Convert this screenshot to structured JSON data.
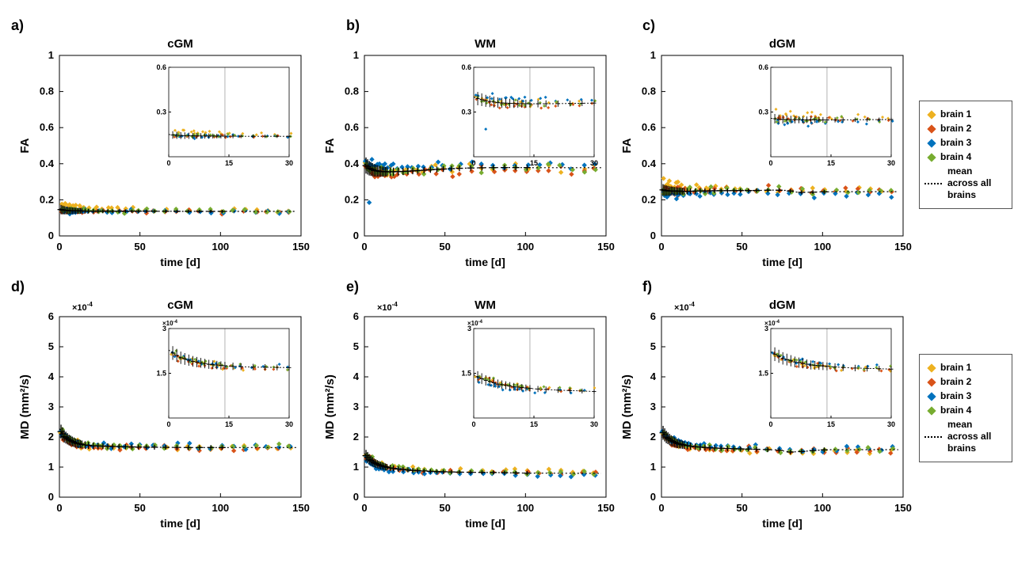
{
  "page": {
    "background": "#ffffff"
  },
  "sample_times": [
    1,
    2,
    3,
    4,
    5,
    6,
    7,
    8,
    9,
    10,
    11,
    12,
    13,
    14,
    16,
    18,
    21,
    24,
    27,
    30,
    33,
    37,
    41,
    45,
    49,
    54,
    59,
    66,
    73,
    80,
    87,
    94,
    101,
    108,
    115,
    122,
    129,
    136,
    143
  ],
  "legend": {
    "entries": [
      {
        "label": "brain 1",
        "marker": "diamond",
        "color": "#EDB120"
      },
      {
        "label": "brain 2",
        "marker": "diamond",
        "color": "#D95319"
      },
      {
        "label": "brain 3",
        "marker": "diamond",
        "color": "#0072BD"
      },
      {
        "label": "brain 4",
        "marker": "diamond",
        "color": "#77AC30"
      },
      {
        "label": "mean across all brains",
        "marker": "dotted-line",
        "color": "#000000"
      }
    ]
  },
  "chart_data": [
    {
      "id": "a",
      "panel_label": "a)",
      "type": "scatter",
      "title": "cGM",
      "xlabel": "time [d]",
      "ylabel": "FA",
      "xlim": [
        0,
        150
      ],
      "ylim": [
        0,
        1
      ],
      "xticks": [
        0,
        50,
        100,
        150
      ],
      "yticks": [
        0,
        0.2,
        0.4,
        0.6,
        0.8,
        1
      ],
      "y_exp": null,
      "mean_curve": [
        [
          0,
          0.15
        ],
        [
          1,
          0.146
        ],
        [
          3,
          0.142
        ],
        [
          6,
          0.14
        ],
        [
          10,
          0.139
        ],
        [
          15,
          0.138
        ],
        [
          20,
          0.137
        ],
        [
          30,
          0.137
        ],
        [
          50,
          0.137
        ],
        [
          80,
          0.136
        ],
        [
          110,
          0.136
        ],
        [
          148,
          0.136
        ]
      ],
      "noise_sd": 0.006,
      "errorbar_base": 0.02,
      "errorbar_tmax": 101,
      "series": [
        {
          "name": "brain 1",
          "color": "#EDB120",
          "offset_early": 0.028,
          "offset_late": 0.004
        },
        {
          "name": "brain 2",
          "color": "#D95319",
          "offset_early": -0.004,
          "offset_late": -0.001
        },
        {
          "name": "brain 3",
          "color": "#0072BD",
          "offset_early": -0.004,
          "offset_late": 0.0
        },
        {
          "name": "brain 4",
          "color": "#77AC30",
          "offset_early": 0.002,
          "offset_late": 0.001
        }
      ],
      "extra_points": [],
      "inset": {
        "xlim": [
          0,
          30
        ],
        "ylim": [
          0,
          0.6
        ],
        "xticks": [
          0,
          15,
          30
        ],
        "yticks": [
          0.3,
          0.6
        ],
        "vline": 14,
        "y_exp": null
      }
    },
    {
      "id": "b",
      "panel_label": "b)",
      "type": "scatter",
      "title": "WM",
      "xlabel": "time [d]",
      "ylabel": "FA",
      "xlim": [
        0,
        150
      ],
      "ylim": [
        0,
        1
      ],
      "xticks": [
        0,
        50,
        100,
        150
      ],
      "yticks": [
        0,
        0.2,
        0.4,
        0.6,
        0.8,
        1
      ],
      "y_exp": null,
      "mean_curve": [
        [
          0,
          0.4
        ],
        [
          1,
          0.39
        ],
        [
          3,
          0.375
        ],
        [
          6,
          0.363
        ],
        [
          10,
          0.357
        ],
        [
          15,
          0.355
        ],
        [
          20,
          0.356
        ],
        [
          30,
          0.36
        ],
        [
          40,
          0.366
        ],
        [
          50,
          0.371
        ],
        [
          60,
          0.375
        ],
        [
          75,
          0.378
        ],
        [
          90,
          0.379
        ],
        [
          110,
          0.378
        ],
        [
          148,
          0.378
        ]
      ],
      "noise_sd": 0.013,
      "errorbar_base": 0.035,
      "errorbar_tmax": 101,
      "series": [
        {
          "name": "brain 1",
          "color": "#EDB120",
          "offset_early": 0.01,
          "offset_late": 0.002
        },
        {
          "name": "brain 2",
          "color": "#D95319",
          "offset_early": -0.012,
          "offset_late": -0.012
        },
        {
          "name": "brain 3",
          "color": "#0072BD",
          "offset_early": 0.035,
          "offset_late": 0.016
        },
        {
          "name": "brain 4",
          "color": "#77AC30",
          "offset_early": -0.004,
          "offset_late": 0.0
        }
      ],
      "extra_points": [
        {
          "series": 2,
          "x": 3,
          "y": 0.185
        }
      ],
      "inset": {
        "xlim": [
          0,
          30
        ],
        "ylim": [
          0,
          0.6
        ],
        "xticks": [
          0,
          15,
          30
        ],
        "yticks": [
          0.3,
          0.6
        ],
        "vline": 14,
        "y_exp": null
      }
    },
    {
      "id": "c",
      "panel_label": "c)",
      "type": "scatter",
      "title": "dGM",
      "xlabel": "time [d]",
      "ylabel": "FA",
      "xlim": [
        0,
        150
      ],
      "ylim": [
        0,
        1
      ],
      "xticks": [
        0,
        50,
        100,
        150
      ],
      "yticks": [
        0,
        0.2,
        0.4,
        0.6,
        0.8,
        1
      ],
      "y_exp": null,
      "mean_curve": [
        [
          0,
          0.258
        ],
        [
          2,
          0.252
        ],
        [
          5,
          0.249
        ],
        [
          10,
          0.248
        ],
        [
          15,
          0.247
        ],
        [
          20,
          0.248
        ],
        [
          30,
          0.25
        ],
        [
          45,
          0.251
        ],
        [
          60,
          0.252
        ],
        [
          70,
          0.254
        ],
        [
          78,
          0.252
        ],
        [
          85,
          0.241
        ],
        [
          92,
          0.242
        ],
        [
          100,
          0.244
        ],
        [
          110,
          0.245
        ],
        [
          148,
          0.245
        ]
      ],
      "noise_sd": 0.011,
      "errorbar_base": 0.025,
      "errorbar_tmax": 101,
      "series": [
        {
          "name": "brain 1",
          "color": "#EDB120",
          "offset_early": 0.034,
          "offset_late": 0.006
        },
        {
          "name": "brain 2",
          "color": "#D95319",
          "offset_early": 0.002,
          "offset_late": 0.004
        },
        {
          "name": "brain 3",
          "color": "#0072BD",
          "offset_early": -0.02,
          "offset_late": -0.014
        },
        {
          "name": "brain 4",
          "color": "#77AC30",
          "offset_early": 0.002,
          "offset_late": 0.0
        }
      ],
      "extra_points": [],
      "inset": {
        "xlim": [
          0,
          30
        ],
        "ylim": [
          0,
          0.6
        ],
        "xticks": [
          0,
          15,
          30
        ],
        "yticks": [
          0.3,
          0.6
        ],
        "vline": 14,
        "y_exp": null
      }
    },
    {
      "id": "d",
      "panel_label": "d)",
      "type": "scatter",
      "title": "cGM",
      "xlabel": "time [d]",
      "ylabel": "MD (mm²/s)",
      "xlim": [
        0,
        150
      ],
      "ylim": [
        0,
        6
      ],
      "xticks": [
        0,
        50,
        100,
        150
      ],
      "yticks": [
        0,
        1,
        2,
        3,
        4,
        5,
        6
      ],
      "y_exp": {
        "text": "×10⁻⁴",
        "base": "×10",
        "sup": "-4"
      },
      "mean_curve": [
        [
          0,
          2.28
        ],
        [
          1,
          2.18
        ],
        [
          3,
          2.02
        ],
        [
          6,
          1.9
        ],
        [
          10,
          1.8
        ],
        [
          15,
          1.74
        ],
        [
          20,
          1.71
        ],
        [
          30,
          1.69
        ],
        [
          45,
          1.67
        ],
        [
          60,
          1.66
        ],
        [
          80,
          1.65
        ],
        [
          100,
          1.65
        ],
        [
          148,
          1.65
        ]
      ],
      "noise_sd": 0.05,
      "errorbar_base": 0.18,
      "errorbar_tmax": 101,
      "series": [
        {
          "name": "brain 1",
          "color": "#EDB120",
          "offset_early": 0.0,
          "offset_late": -0.02
        },
        {
          "name": "brain 2",
          "color": "#D95319",
          "offset_early": -0.05,
          "offset_late": -0.04
        },
        {
          "name": "brain 3",
          "color": "#0072BD",
          "offset_early": 0.02,
          "offset_late": 0.03
        },
        {
          "name": "brain 4",
          "color": "#77AC30",
          "offset_early": 0.05,
          "offset_late": 0.02
        }
      ],
      "extra_points": [],
      "inset": {
        "xlim": [
          0,
          30
        ],
        "ylim": [
          0,
          3
        ],
        "xticks": [
          0,
          15,
          30
        ],
        "yticks": [
          1.5,
          3
        ],
        "vline": 14,
        "y_exp": {
          "text": "×10⁻⁴",
          "base": "×10",
          "sup": "-4"
        }
      }
    },
    {
      "id": "e",
      "panel_label": "e)",
      "type": "scatter",
      "title": "WM",
      "xlabel": "time [d]",
      "ylabel": "MD (mm²/s)",
      "xlim": [
        0,
        150
      ],
      "ylim": [
        0,
        6
      ],
      "xticks": [
        0,
        50,
        100,
        150
      ],
      "yticks": [
        0,
        1,
        2,
        3,
        4,
        5,
        6
      ],
      "y_exp": {
        "text": "×10⁻⁴",
        "base": "×10",
        "sup": "-4"
      },
      "mean_curve": [
        [
          0,
          1.45
        ],
        [
          1,
          1.38
        ],
        [
          3,
          1.26
        ],
        [
          6,
          1.14
        ],
        [
          10,
          1.05
        ],
        [
          15,
          0.98
        ],
        [
          20,
          0.94
        ],
        [
          30,
          0.89
        ],
        [
          45,
          0.85
        ],
        [
          60,
          0.83
        ],
        [
          80,
          0.82
        ],
        [
          100,
          0.8
        ],
        [
          148,
          0.79
        ]
      ],
      "noise_sd": 0.04,
      "errorbar_base": 0.15,
      "errorbar_tmax": 101,
      "series": [
        {
          "name": "brain 1",
          "color": "#EDB120",
          "offset_early": 0.05,
          "offset_late": 0.05
        },
        {
          "name": "brain 2",
          "color": "#D95319",
          "offset_early": 0.01,
          "offset_late": -0.01
        },
        {
          "name": "brain 3",
          "color": "#0072BD",
          "offset_early": -0.09,
          "offset_late": -0.06
        },
        {
          "name": "brain 4",
          "color": "#77AC30",
          "offset_early": 0.06,
          "offset_late": 0.01
        }
      ],
      "extra_points": [],
      "inset": {
        "xlim": [
          0,
          30
        ],
        "ylim": [
          0,
          3
        ],
        "xticks": [
          0,
          15,
          30
        ],
        "yticks": [
          1.5,
          3
        ],
        "vline": 14,
        "y_exp": {
          "text": "×10⁻⁴",
          "base": "×10",
          "sup": "-4"
        }
      }
    },
    {
      "id": "f",
      "panel_label": "f)",
      "type": "scatter",
      "title": "dGM",
      "xlabel": "time [d]",
      "ylabel": "MD (mm²/s)",
      "xlim": [
        0,
        150
      ],
      "ylim": [
        0,
        6
      ],
      "xticks": [
        0,
        50,
        100,
        150
      ],
      "yticks": [
        0,
        1,
        2,
        3,
        4,
        5,
        6
      ],
      "y_exp": {
        "text": "×10⁻⁴",
        "base": "×10",
        "sup": "-4"
      },
      "mean_curve": [
        [
          0,
          2.22
        ],
        [
          1,
          2.14
        ],
        [
          3,
          2.0
        ],
        [
          6,
          1.88
        ],
        [
          10,
          1.78
        ],
        [
          15,
          1.72
        ],
        [
          20,
          1.68
        ],
        [
          30,
          1.64
        ],
        [
          45,
          1.61
        ],
        [
          60,
          1.59
        ],
        [
          72,
          1.57
        ],
        [
          80,
          1.5
        ],
        [
          88,
          1.52
        ],
        [
          96,
          1.56
        ],
        [
          105,
          1.58
        ],
        [
          148,
          1.58
        ]
      ],
      "noise_sd": 0.05,
      "errorbar_base": 0.18,
      "errorbar_tmax": 101,
      "series": [
        {
          "name": "brain 1",
          "color": "#EDB120",
          "offset_early": -0.04,
          "offset_late": -0.05
        },
        {
          "name": "brain 2",
          "color": "#D95319",
          "offset_early": -0.03,
          "offset_late": -0.03
        },
        {
          "name": "brain 3",
          "color": "#0072BD",
          "offset_early": 0.05,
          "offset_late": 0.05
        },
        {
          "name": "brain 4",
          "color": "#77AC30",
          "offset_early": 0.03,
          "offset_late": 0.01
        }
      ],
      "extra_points": [],
      "inset": {
        "xlim": [
          0,
          30
        ],
        "ylim": [
          0,
          3
        ],
        "xticks": [
          0,
          15,
          30
        ],
        "yticks": [
          1.5,
          3
        ],
        "vline": 14,
        "y_exp": {
          "text": "×10⁻⁴",
          "base": "×10",
          "sup": "-4"
        }
      }
    }
  ]
}
